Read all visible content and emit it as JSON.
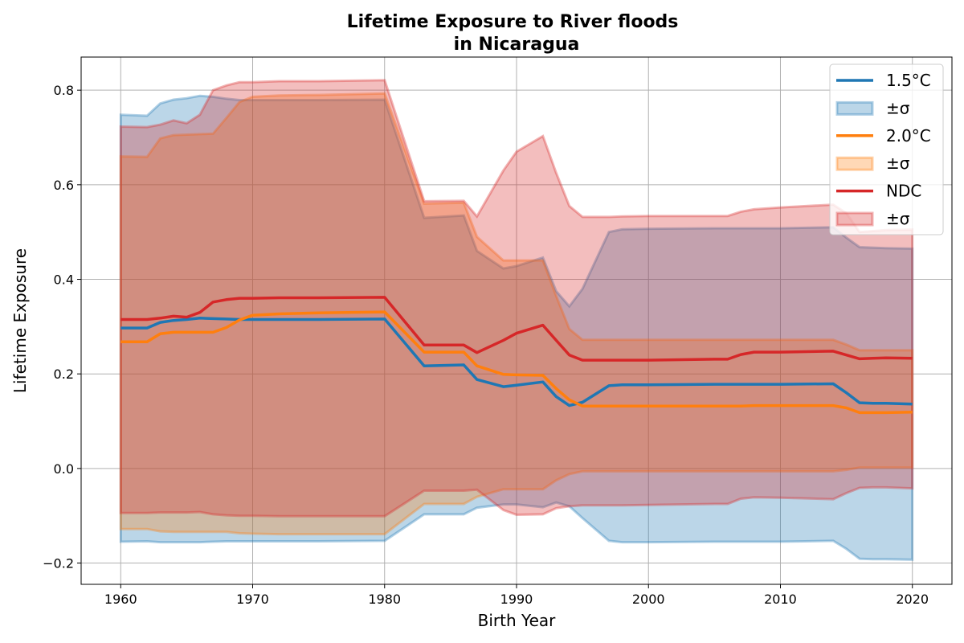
{
  "chart_data": {
    "type": "line",
    "title": [
      "Lifetime Exposure to River floods",
      "in Nicaragua"
    ],
    "xlabel": "Birth Year",
    "ylabel": "Lifetime Exposure",
    "xlim": [
      1957,
      2023
    ],
    "ylim": [
      -0.245,
      0.87
    ],
    "xticks": [
      1960,
      1970,
      1980,
      1990,
      2000,
      2010,
      2020
    ],
    "yticks": [
      -0.2,
      0.0,
      0.2,
      0.4,
      0.6,
      0.8
    ],
    "ytick_labels": [
      "−0.2",
      "0.0",
      "0.2",
      "0.4",
      "0.6",
      "0.8"
    ],
    "grid": true,
    "legend_position": "top-right",
    "x": [
      1960,
      1962,
      1963,
      1964,
      1965,
      1966,
      1967,
      1968,
      1969,
      1970,
      1972,
      1975,
      1980,
      1983,
      1986,
      1987,
      1989,
      1990,
      1992,
      1993,
      1994,
      1995,
      1997,
      1998,
      2000,
      2005,
      2006,
      2007,
      2008,
      2010,
      2014,
      2015,
      2016,
      2017,
      2018,
      2020
    ],
    "series": [
      {
        "name": "1.5°C",
        "color": "#1f77b4",
        "values": [
          0.297,
          0.297,
          0.309,
          0.313,
          0.315,
          0.318,
          0.317,
          0.316,
          0.315,
          0.315,
          0.315,
          0.315,
          0.316,
          0.217,
          0.219,
          0.188,
          0.173,
          0.176,
          0.183,
          0.152,
          0.133,
          0.14,
          0.175,
          0.177,
          0.177,
          0.178,
          0.178,
          0.178,
          0.178,
          0.178,
          0.179,
          0.16,
          0.139,
          0.138,
          0.138,
          0.136
        ],
        "upper": [
          0.748,
          0.746,
          0.772,
          0.78,
          0.783,
          0.788,
          0.786,
          0.782,
          0.779,
          0.779,
          0.779,
          0.779,
          0.78,
          0.53,
          0.535,
          0.46,
          0.423,
          0.428,
          0.446,
          0.375,
          0.343,
          0.38,
          0.5,
          0.506,
          0.507,
          0.508,
          0.508,
          0.508,
          0.508,
          0.508,
          0.51,
          0.488,
          0.468,
          0.467,
          0.466,
          0.465
        ],
        "lower": [
          -0.155,
          -0.154,
          -0.156,
          -0.156,
          -0.156,
          -0.156,
          -0.155,
          -0.154,
          -0.154,
          -0.154,
          -0.154,
          -0.154,
          -0.153,
          -0.097,
          -0.097,
          -0.083,
          -0.076,
          -0.076,
          -0.082,
          -0.072,
          -0.08,
          -0.105,
          -0.153,
          -0.156,
          -0.156,
          -0.155,
          -0.155,
          -0.155,
          -0.155,
          -0.155,
          -0.153,
          -0.17,
          -0.191,
          -0.192,
          -0.192,
          -0.193
        ]
      },
      {
        "name": "2.0°C",
        "color": "#ff7f0e",
        "values": [
          0.268,
          0.268,
          0.285,
          0.288,
          0.288,
          0.288,
          0.288,
          0.298,
          0.314,
          0.324,
          0.327,
          0.329,
          0.331,
          0.246,
          0.246,
          0.217,
          0.199,
          0.198,
          0.197,
          0.169,
          0.145,
          0.132,
          0.132,
          0.132,
          0.132,
          0.132,
          0.132,
          0.132,
          0.133,
          0.133,
          0.133,
          0.128,
          0.118,
          0.118,
          0.118,
          0.119
        ],
        "upper": [
          0.66,
          0.659,
          0.698,
          0.705,
          0.706,
          0.707,
          0.708,
          0.741,
          0.775,
          0.786,
          0.789,
          0.79,
          0.793,
          0.56,
          0.562,
          0.49,
          0.44,
          0.44,
          0.44,
          0.365,
          0.295,
          0.272,
          0.272,
          0.272,
          0.272,
          0.272,
          0.272,
          0.272,
          0.272,
          0.272,
          0.272,
          0.262,
          0.25,
          0.25,
          0.25,
          0.25
        ],
        "lower": [
          -0.128,
          -0.128,
          -0.133,
          -0.134,
          -0.134,
          -0.134,
          -0.134,
          -0.134,
          -0.137,
          -0.138,
          -0.139,
          -0.139,
          -0.139,
          -0.075,
          -0.075,
          -0.06,
          -0.044,
          -0.044,
          -0.044,
          -0.025,
          -0.012,
          -0.006,
          -0.006,
          -0.006,
          -0.006,
          -0.006,
          -0.006,
          -0.006,
          -0.006,
          -0.006,
          -0.006,
          -0.003,
          0.002,
          0.002,
          0.002,
          0.002
        ]
      },
      {
        "name": "NDC",
        "color": "#d62728",
        "values": [
          0.315,
          0.315,
          0.318,
          0.322,
          0.32,
          0.33,
          0.352,
          0.357,
          0.36,
          0.36,
          0.361,
          0.361,
          0.362,
          0.261,
          0.261,
          0.245,
          0.271,
          0.286,
          0.303,
          0.271,
          0.24,
          0.229,
          0.229,
          0.229,
          0.229,
          0.231,
          0.231,
          0.241,
          0.246,
          0.246,
          0.248,
          0.24,
          0.232,
          0.233,
          0.234,
          0.233
        ],
        "upper": [
          0.723,
          0.722,
          0.727,
          0.736,
          0.73,
          0.748,
          0.8,
          0.81,
          0.817,
          0.817,
          0.819,
          0.819,
          0.821,
          0.565,
          0.566,
          0.533,
          0.63,
          0.67,
          0.703,
          0.625,
          0.555,
          0.532,
          0.532,
          0.533,
          0.534,
          0.534,
          0.534,
          0.543,
          0.548,
          0.552,
          0.558,
          0.54,
          0.5,
          0.502,
          0.504,
          0.505
        ],
        "lower": [
          -0.094,
          -0.094,
          -0.093,
          -0.093,
          -0.093,
          -0.092,
          -0.097,
          -0.099,
          -0.1,
          -0.1,
          -0.101,
          -0.101,
          -0.101,
          -0.047,
          -0.047,
          -0.045,
          -0.088,
          -0.098,
          -0.097,
          -0.084,
          -0.08,
          -0.078,
          -0.078,
          -0.078,
          -0.077,
          -0.075,
          -0.075,
          -0.064,
          -0.061,
          -0.062,
          -0.065,
          -0.052,
          -0.041,
          -0.04,
          -0.04,
          -0.042
        ]
      }
    ],
    "legend": [
      {
        "kind": "line",
        "label": "1.5°C",
        "color": "#1f77b4"
      },
      {
        "kind": "band",
        "label": "±σ",
        "color": "#1f77b4"
      },
      {
        "kind": "line",
        "label": "2.0°C",
        "color": "#ff7f0e"
      },
      {
        "kind": "band",
        "label": "±σ",
        "color": "#ff7f0e"
      },
      {
        "kind": "line",
        "label": "NDC",
        "color": "#d62728"
      },
      {
        "kind": "band",
        "label": "±σ",
        "color": "#d62728"
      }
    ]
  }
}
